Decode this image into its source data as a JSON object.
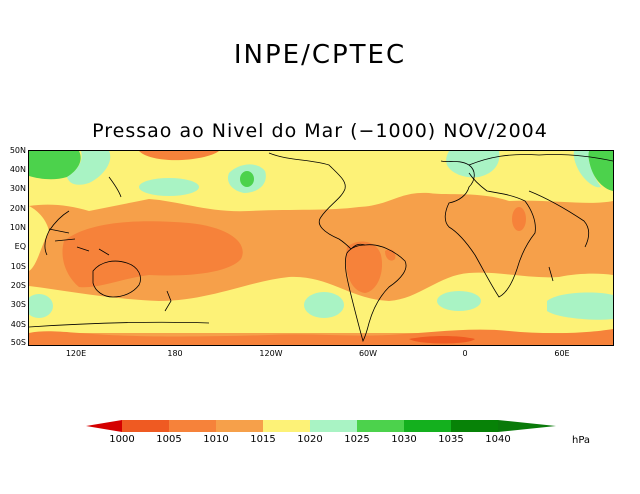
{
  "header": {
    "title": "INPE/CPTEC",
    "subtitle": "Pressao ao Nivel do Mar (−1000) NOV/2004"
  },
  "map": {
    "lat_labels": [
      "50N",
      "40N",
      "30N",
      "20N",
      "10N",
      "EQ",
      "10S",
      "20S",
      "30S",
      "40S",
      "50S"
    ],
    "lon_labels": [
      "120E",
      "180",
      "120W",
      "60W",
      "0",
      "60E"
    ]
  },
  "legend": {
    "levels": [
      "1000",
      "1005",
      "1010",
      "1015",
      "1020",
      "1025",
      "1030",
      "1035",
      "1040"
    ],
    "colors": [
      "#d40000",
      "#ef5a22",
      "#f6823a",
      "#f6a04a",
      "#fdf277",
      "#a9f3c4",
      "#4cd24c",
      "#14b01e",
      "#078207",
      "#0a7a0a"
    ],
    "unit": "hPa"
  }
}
